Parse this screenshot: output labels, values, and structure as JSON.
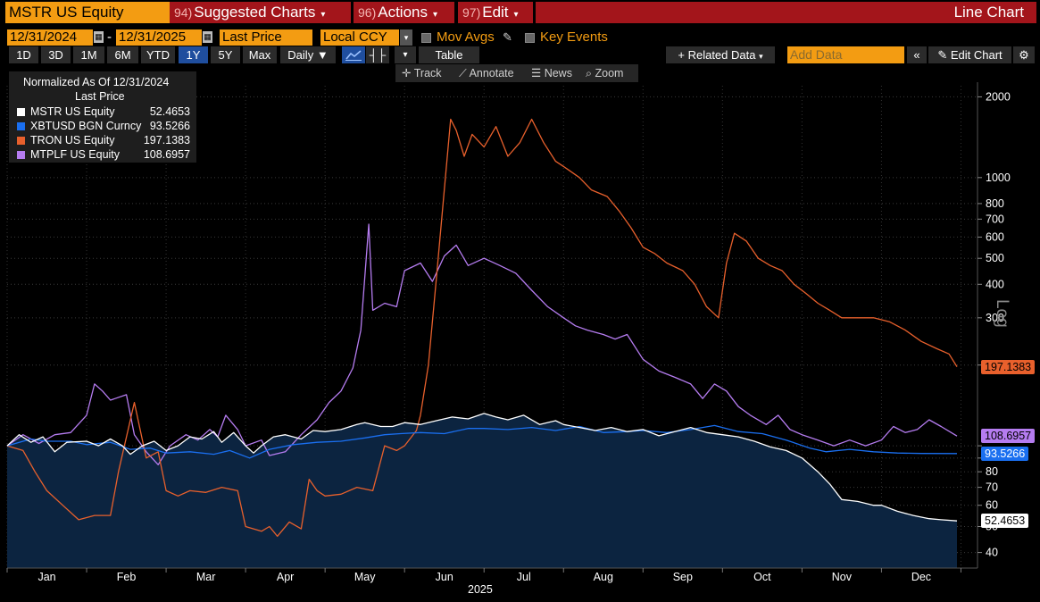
{
  "header": {
    "ticker": "MSTR US Equity",
    "menu1_num": "94)",
    "menu1": "Suggested Charts",
    "menu2_num": "96)",
    "menu2": "Actions",
    "menu3_num": "97)",
    "menu3": "Edit",
    "chart_title": "Line Chart"
  },
  "controls": {
    "start_date": "12/31/2024",
    "end_date": "12/31/2025",
    "date_sep": "-",
    "field": "Last Price",
    "currency": "Local CCY",
    "mov_avgs": "Mov Avgs",
    "key_events": "Key Events"
  },
  "periods": [
    "1D",
    "3D",
    "1M",
    "6M",
    "YTD",
    "1Y",
    "5Y",
    "Max"
  ],
  "selected_period": "1Y",
  "frequency": "Daily",
  "table_label": "Table",
  "related_data": "Related Data",
  "add_data_placeholder": "Add Data",
  "edit_chart": "Edit Chart",
  "tools": {
    "track": "Track",
    "annotate": "Annotate",
    "news": "News",
    "zoom": "Zoom"
  },
  "legend": {
    "title1": "Normalized As Of 12/31/2024",
    "title2": "Last Price",
    "items": [
      {
        "name": "MSTR US Equity",
        "value": "52.4653",
        "color": "#ffffff"
      },
      {
        "name": "XBTUSD BGN Curncy",
        "value": "93.5266",
        "color": "#1a6ff0"
      },
      {
        "name": "TRON US Equity",
        "value": "197.1383",
        "color": "#e8602c"
      },
      {
        "name": "MTPLF US Equity",
        "value": "108.6957",
        "color": "#b57cf0"
      }
    ]
  },
  "axis": {
    "scale_label": "Log",
    "year_label": "2025"
  },
  "colors": {
    "orange": "#f39c12",
    "red": "#a3151b",
    "area": "#0c2440"
  },
  "chart_data": {
    "type": "line",
    "title": "Normalized As Of 12/31/2024 — Last Price",
    "xlabel": "2025",
    "ylabel": "Log",
    "yscale": "log",
    "ylim": [
      35,
      2200
    ],
    "yticks": [
      40,
      50,
      60,
      70,
      80,
      90,
      100,
      200,
      300,
      400,
      500,
      600,
      700,
      800,
      1000,
      2000
    ],
    "ytick_labels": [
      "40",
      "50",
      "60",
      "70",
      "80",
      "",
      "",
      "",
      "300",
      "400",
      "500",
      "600",
      "700",
      "800",
      "1000",
      "2000"
    ],
    "months": [
      "Jan",
      "Feb",
      "Mar",
      "Apr",
      "May",
      "Jun",
      "Jul",
      "Aug",
      "Sep",
      "Oct",
      "Nov",
      "Dec"
    ],
    "series": [
      {
        "name": "MSTR US Equity",
        "color": "#ffffff",
        "area": true,
        "last": "52.4653",
        "points": [
          [
            0,
            100
          ],
          [
            0.15,
            110
          ],
          [
            0.3,
            103
          ],
          [
            0.45,
            108
          ],
          [
            0.6,
            95
          ],
          [
            0.75,
            103
          ],
          [
            1,
            104
          ],
          [
            1.15,
            100
          ],
          [
            1.3,
            106
          ],
          [
            1.45,
            100
          ],
          [
            1.55,
            93
          ],
          [
            1.7,
            100
          ],
          [
            1.85,
            104
          ],
          [
            2,
            96
          ],
          [
            2.15,
            100
          ],
          [
            2.3,
            108
          ],
          [
            2.45,
            106
          ],
          [
            2.6,
            113
          ],
          [
            2.7,
            103
          ],
          [
            2.85,
            112
          ],
          [
            3,
            100
          ],
          [
            3.1,
            94
          ],
          [
            3.2,
            100
          ],
          [
            3.35,
            108
          ],
          [
            3.5,
            110
          ],
          [
            3.7,
            106
          ],
          [
            3.85,
            114
          ],
          [
            4,
            113
          ],
          [
            4.2,
            115
          ],
          [
            4.4,
            120
          ],
          [
            4.5,
            122
          ],
          [
            4.7,
            118
          ],
          [
            4.85,
            118
          ],
          [
            5,
            122
          ],
          [
            5.2,
            120
          ],
          [
            5.4,
            124
          ],
          [
            5.6,
            128
          ],
          [
            5.8,
            126
          ],
          [
            6,
            132
          ],
          [
            6.15,
            128
          ],
          [
            6.3,
            125
          ],
          [
            6.5,
            130
          ],
          [
            6.7,
            120
          ],
          [
            6.9,
            124
          ],
          [
            7,
            120
          ],
          [
            7.2,
            117
          ],
          [
            7.4,
            114
          ],
          [
            7.6,
            117
          ],
          [
            7.8,
            113
          ],
          [
            8,
            115
          ],
          [
            8.2,
            109
          ],
          [
            8.4,
            113
          ],
          [
            8.6,
            117
          ],
          [
            8.8,
            112
          ],
          [
            9,
            110
          ],
          [
            9.2,
            108
          ],
          [
            9.4,
            104
          ],
          [
            9.6,
            99
          ],
          [
            9.8,
            96
          ],
          [
            10,
            90
          ],
          [
            10.2,
            80
          ],
          [
            10.35,
            72
          ],
          [
            10.5,
            63
          ],
          [
            10.7,
            62
          ],
          [
            10.9,
            60
          ],
          [
            11,
            60
          ],
          [
            11.2,
            57
          ],
          [
            11.4,
            55
          ],
          [
            11.6,
            53.5
          ],
          [
            11.75,
            53
          ],
          [
            11.95,
            52.47
          ]
        ]
      },
      {
        "name": "XBTUSD BGN Curncy",
        "color": "#1a6ff0",
        "area": false,
        "last": "93.5266",
        "points": [
          [
            0,
            100
          ],
          [
            0.3,
            106
          ],
          [
            0.5,
            104
          ],
          [
            0.8,
            104
          ],
          [
            1,
            101
          ],
          [
            1.3,
            103
          ],
          [
            1.55,
            97
          ],
          [
            1.8,
            98
          ],
          [
            2,
            94
          ],
          [
            2.3,
            95
          ],
          [
            2.6,
            93
          ],
          [
            2.8,
            96
          ],
          [
            3.05,
            90
          ],
          [
            3.3,
            97
          ],
          [
            3.6,
            101
          ],
          [
            3.9,
            103
          ],
          [
            4.2,
            104
          ],
          [
            4.5,
            107
          ],
          [
            4.75,
            110
          ],
          [
            4.95,
            111
          ],
          [
            5.2,
            112
          ],
          [
            5.5,
            111
          ],
          [
            5.8,
            116
          ],
          [
            6,
            116
          ],
          [
            6.3,
            115
          ],
          [
            6.6,
            117
          ],
          [
            6.9,
            114
          ],
          [
            7.2,
            118
          ],
          [
            7.5,
            112
          ],
          [
            7.8,
            113
          ],
          [
            8,
            114
          ],
          [
            8.3,
            112
          ],
          [
            8.6,
            115
          ],
          [
            8.9,
            119
          ],
          [
            9.2,
            113
          ],
          [
            9.5,
            111
          ],
          [
            9.8,
            105
          ],
          [
            10.1,
            98
          ],
          [
            10.3,
            95
          ],
          [
            10.6,
            97
          ],
          [
            10.9,
            95
          ],
          [
            11.2,
            94
          ],
          [
            11.5,
            93.6
          ],
          [
            11.95,
            93.53
          ]
        ]
      },
      {
        "name": "TRON US Equity",
        "color": "#e8602c",
        "area": false,
        "last": "197.1383",
        "points": [
          [
            0,
            100
          ],
          [
            0.2,
            96
          ],
          [
            0.35,
            80
          ],
          [
            0.5,
            68
          ],
          [
            0.7,
            60
          ],
          [
            0.9,
            53
          ],
          [
            1.1,
            55
          ],
          [
            1.3,
            55
          ],
          [
            1.4,
            80
          ],
          [
            1.6,
            145
          ],
          [
            1.75,
            90
          ],
          [
            1.9,
            95
          ],
          [
            2.0,
            68
          ],
          [
            2.15,
            65
          ],
          [
            2.3,
            68
          ],
          [
            2.5,
            67
          ],
          [
            2.7,
            70
          ],
          [
            2.9,
            68
          ],
          [
            3.0,
            50
          ],
          [
            3.2,
            48
          ],
          [
            3.3,
            50
          ],
          [
            3.4,
            46
          ],
          [
            3.55,
            52
          ],
          [
            3.7,
            49
          ],
          [
            3.8,
            75
          ],
          [
            3.9,
            68
          ],
          [
            4.0,
            65
          ],
          [
            4.2,
            66
          ],
          [
            4.4,
            70
          ],
          [
            4.6,
            68
          ],
          [
            4.75,
            100
          ],
          [
            4.9,
            96
          ],
          [
            5.0,
            100
          ],
          [
            5.15,
            114
          ],
          [
            5.2,
            130
          ],
          [
            5.3,
            200
          ],
          [
            5.4,
            420
          ],
          [
            5.5,
            900
          ],
          [
            5.58,
            1650
          ],
          [
            5.65,
            1500
          ],
          [
            5.75,
            1200
          ],
          [
            5.85,
            1450
          ],
          [
            6.0,
            1300
          ],
          [
            6.15,
            1550
          ],
          [
            6.3,
            1200
          ],
          [
            6.45,
            1350
          ],
          [
            6.6,
            1650
          ],
          [
            6.75,
            1350
          ],
          [
            6.9,
            1150
          ],
          [
            7.0,
            1100
          ],
          [
            7.2,
            1000
          ],
          [
            7.35,
            900
          ],
          [
            7.55,
            850
          ],
          [
            7.7,
            750
          ],
          [
            7.85,
            650
          ],
          [
            8.0,
            550
          ],
          [
            8.15,
            520
          ],
          [
            8.3,
            480
          ],
          [
            8.5,
            450
          ],
          [
            8.65,
            400
          ],
          [
            8.8,
            330
          ],
          [
            8.95,
            300
          ],
          [
            9.05,
            480
          ],
          [
            9.15,
            620
          ],
          [
            9.3,
            580
          ],
          [
            9.45,
            500
          ],
          [
            9.6,
            470
          ],
          [
            9.75,
            450
          ],
          [
            9.9,
            400
          ],
          [
            10.05,
            370
          ],
          [
            10.2,
            340
          ],
          [
            10.35,
            320
          ],
          [
            10.5,
            300
          ],
          [
            10.7,
            300
          ],
          [
            10.9,
            300
          ],
          [
            11.1,
            290
          ],
          [
            11.3,
            270
          ],
          [
            11.5,
            245
          ],
          [
            11.7,
            230
          ],
          [
            11.85,
            220
          ],
          [
            11.95,
            197.14
          ]
        ]
      },
      {
        "name": "MTPLF US Equity",
        "color": "#b57cf0",
        "area": false,
        "last": "108.6957",
        "points": [
          [
            0,
            100
          ],
          [
            0.2,
            110
          ],
          [
            0.4,
            102
          ],
          [
            0.6,
            110
          ],
          [
            0.8,
            112
          ],
          [
            1.0,
            130
          ],
          [
            1.1,
            170
          ],
          [
            1.2,
            160
          ],
          [
            1.3,
            148
          ],
          [
            1.5,
            155
          ],
          [
            1.6,
            110
          ],
          [
            1.75,
            95
          ],
          [
            1.9,
            85
          ],
          [
            2.05,
            100
          ],
          [
            2.25,
            110
          ],
          [
            2.4,
            105
          ],
          [
            2.55,
            115
          ],
          [
            2.65,
            108
          ],
          [
            2.75,
            130
          ],
          [
            2.9,
            115
          ],
          [
            3.0,
            100
          ],
          [
            3.2,
            105
          ],
          [
            3.3,
            92
          ],
          [
            3.5,
            95
          ],
          [
            3.7,
            110
          ],
          [
            3.9,
            125
          ],
          [
            4.05,
            145
          ],
          [
            4.2,
            160
          ],
          [
            4.35,
            195
          ],
          [
            4.45,
            270
          ],
          [
            4.55,
            670
          ],
          [
            4.6,
            320
          ],
          [
            4.75,
            340
          ],
          [
            4.9,
            330
          ],
          [
            5.0,
            450
          ],
          [
            5.2,
            480
          ],
          [
            5.35,
            410
          ],
          [
            5.5,
            510
          ],
          [
            5.65,
            560
          ],
          [
            5.8,
            470
          ],
          [
            6.0,
            500
          ],
          [
            6.2,
            470
          ],
          [
            6.4,
            440
          ],
          [
            6.6,
            380
          ],
          [
            6.8,
            330
          ],
          [
            7.0,
            300
          ],
          [
            7.15,
            280
          ],
          [
            7.3,
            270
          ],
          [
            7.5,
            260
          ],
          [
            7.65,
            250
          ],
          [
            7.8,
            260
          ],
          [
            8.0,
            210
          ],
          [
            8.2,
            190
          ],
          [
            8.4,
            180
          ],
          [
            8.6,
            170
          ],
          [
            8.75,
            150
          ],
          [
            8.9,
            170
          ],
          [
            9.05,
            160
          ],
          [
            9.2,
            140
          ],
          [
            9.35,
            130
          ],
          [
            9.55,
            120
          ],
          [
            9.7,
            130
          ],
          [
            9.85,
            115
          ],
          [
            10.0,
            110
          ],
          [
            10.2,
            105
          ],
          [
            10.4,
            100
          ],
          [
            10.6,
            105
          ],
          [
            10.8,
            100
          ],
          [
            11.0,
            105
          ],
          [
            11.15,
            118
          ],
          [
            11.3,
            112
          ],
          [
            11.45,
            115
          ],
          [
            11.6,
            125
          ],
          [
            11.75,
            118
          ],
          [
            11.95,
            108.7
          ]
        ]
      }
    ]
  }
}
